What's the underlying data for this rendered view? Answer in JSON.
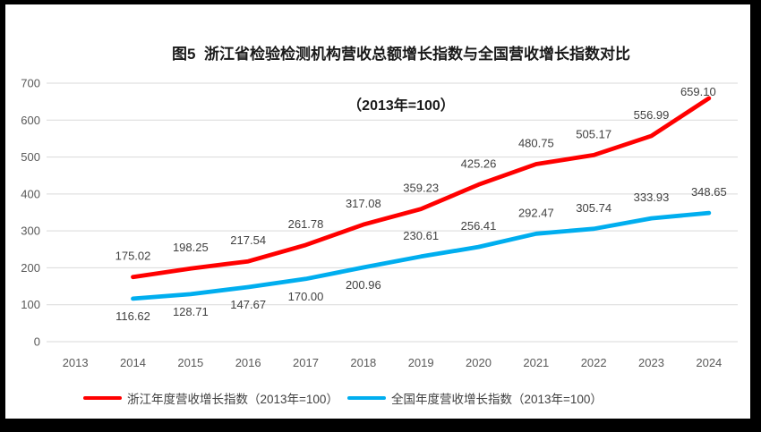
{
  "title": {
    "line1": "图5  浙江省检验检测机构营收总额增长指数与全国营收增长指数对比",
    "line2": "（2013年=100）"
  },
  "chart_data": {
    "type": "line",
    "title": "图5 浙江省检验检测机构营收总额增长指数与全国营收增长指数对比（2013年=100）",
    "categories": [
      "2013",
      "2014",
      "2015",
      "2016",
      "2017",
      "2018",
      "2019",
      "2020",
      "2021",
      "2022",
      "2023",
      "2024"
    ],
    "ylim": [
      0,
      700
    ],
    "ytick_step": 100,
    "grid": true,
    "legend_position": "bottom",
    "data_labels": true,
    "axis_text_color": "#595959",
    "label_text_color": "#404040",
    "gridline_color": "#d9d9d9",
    "series": [
      {
        "name": "浙江年度营收增长指数（2013年=100）",
        "color": "#ff0000",
        "start_index": 1,
        "values": [
          175.02,
          198.25,
          217.54,
          261.78,
          317.08,
          359.23,
          425.26,
          480.75,
          505.17,
          556.99,
          659.1
        ],
        "label_side": "above",
        "label_overrides": {
          "10": {
            "dx": -12,
            "dy": 16
          }
        }
      },
      {
        "name": "全国年度营收增长指数（2013年=100）",
        "color": "#00aeef",
        "start_index": 1,
        "values": [
          116.62,
          128.71,
          147.67,
          170.0,
          200.96,
          230.61,
          256.41,
          292.47,
          305.74,
          333.93,
          348.65
        ],
        "label_side": [
          "below",
          "below",
          "below",
          "below",
          "below",
          "above",
          "above",
          "above",
          "above",
          "above",
          "above"
        ],
        "label_overrides": {}
      }
    ]
  }
}
